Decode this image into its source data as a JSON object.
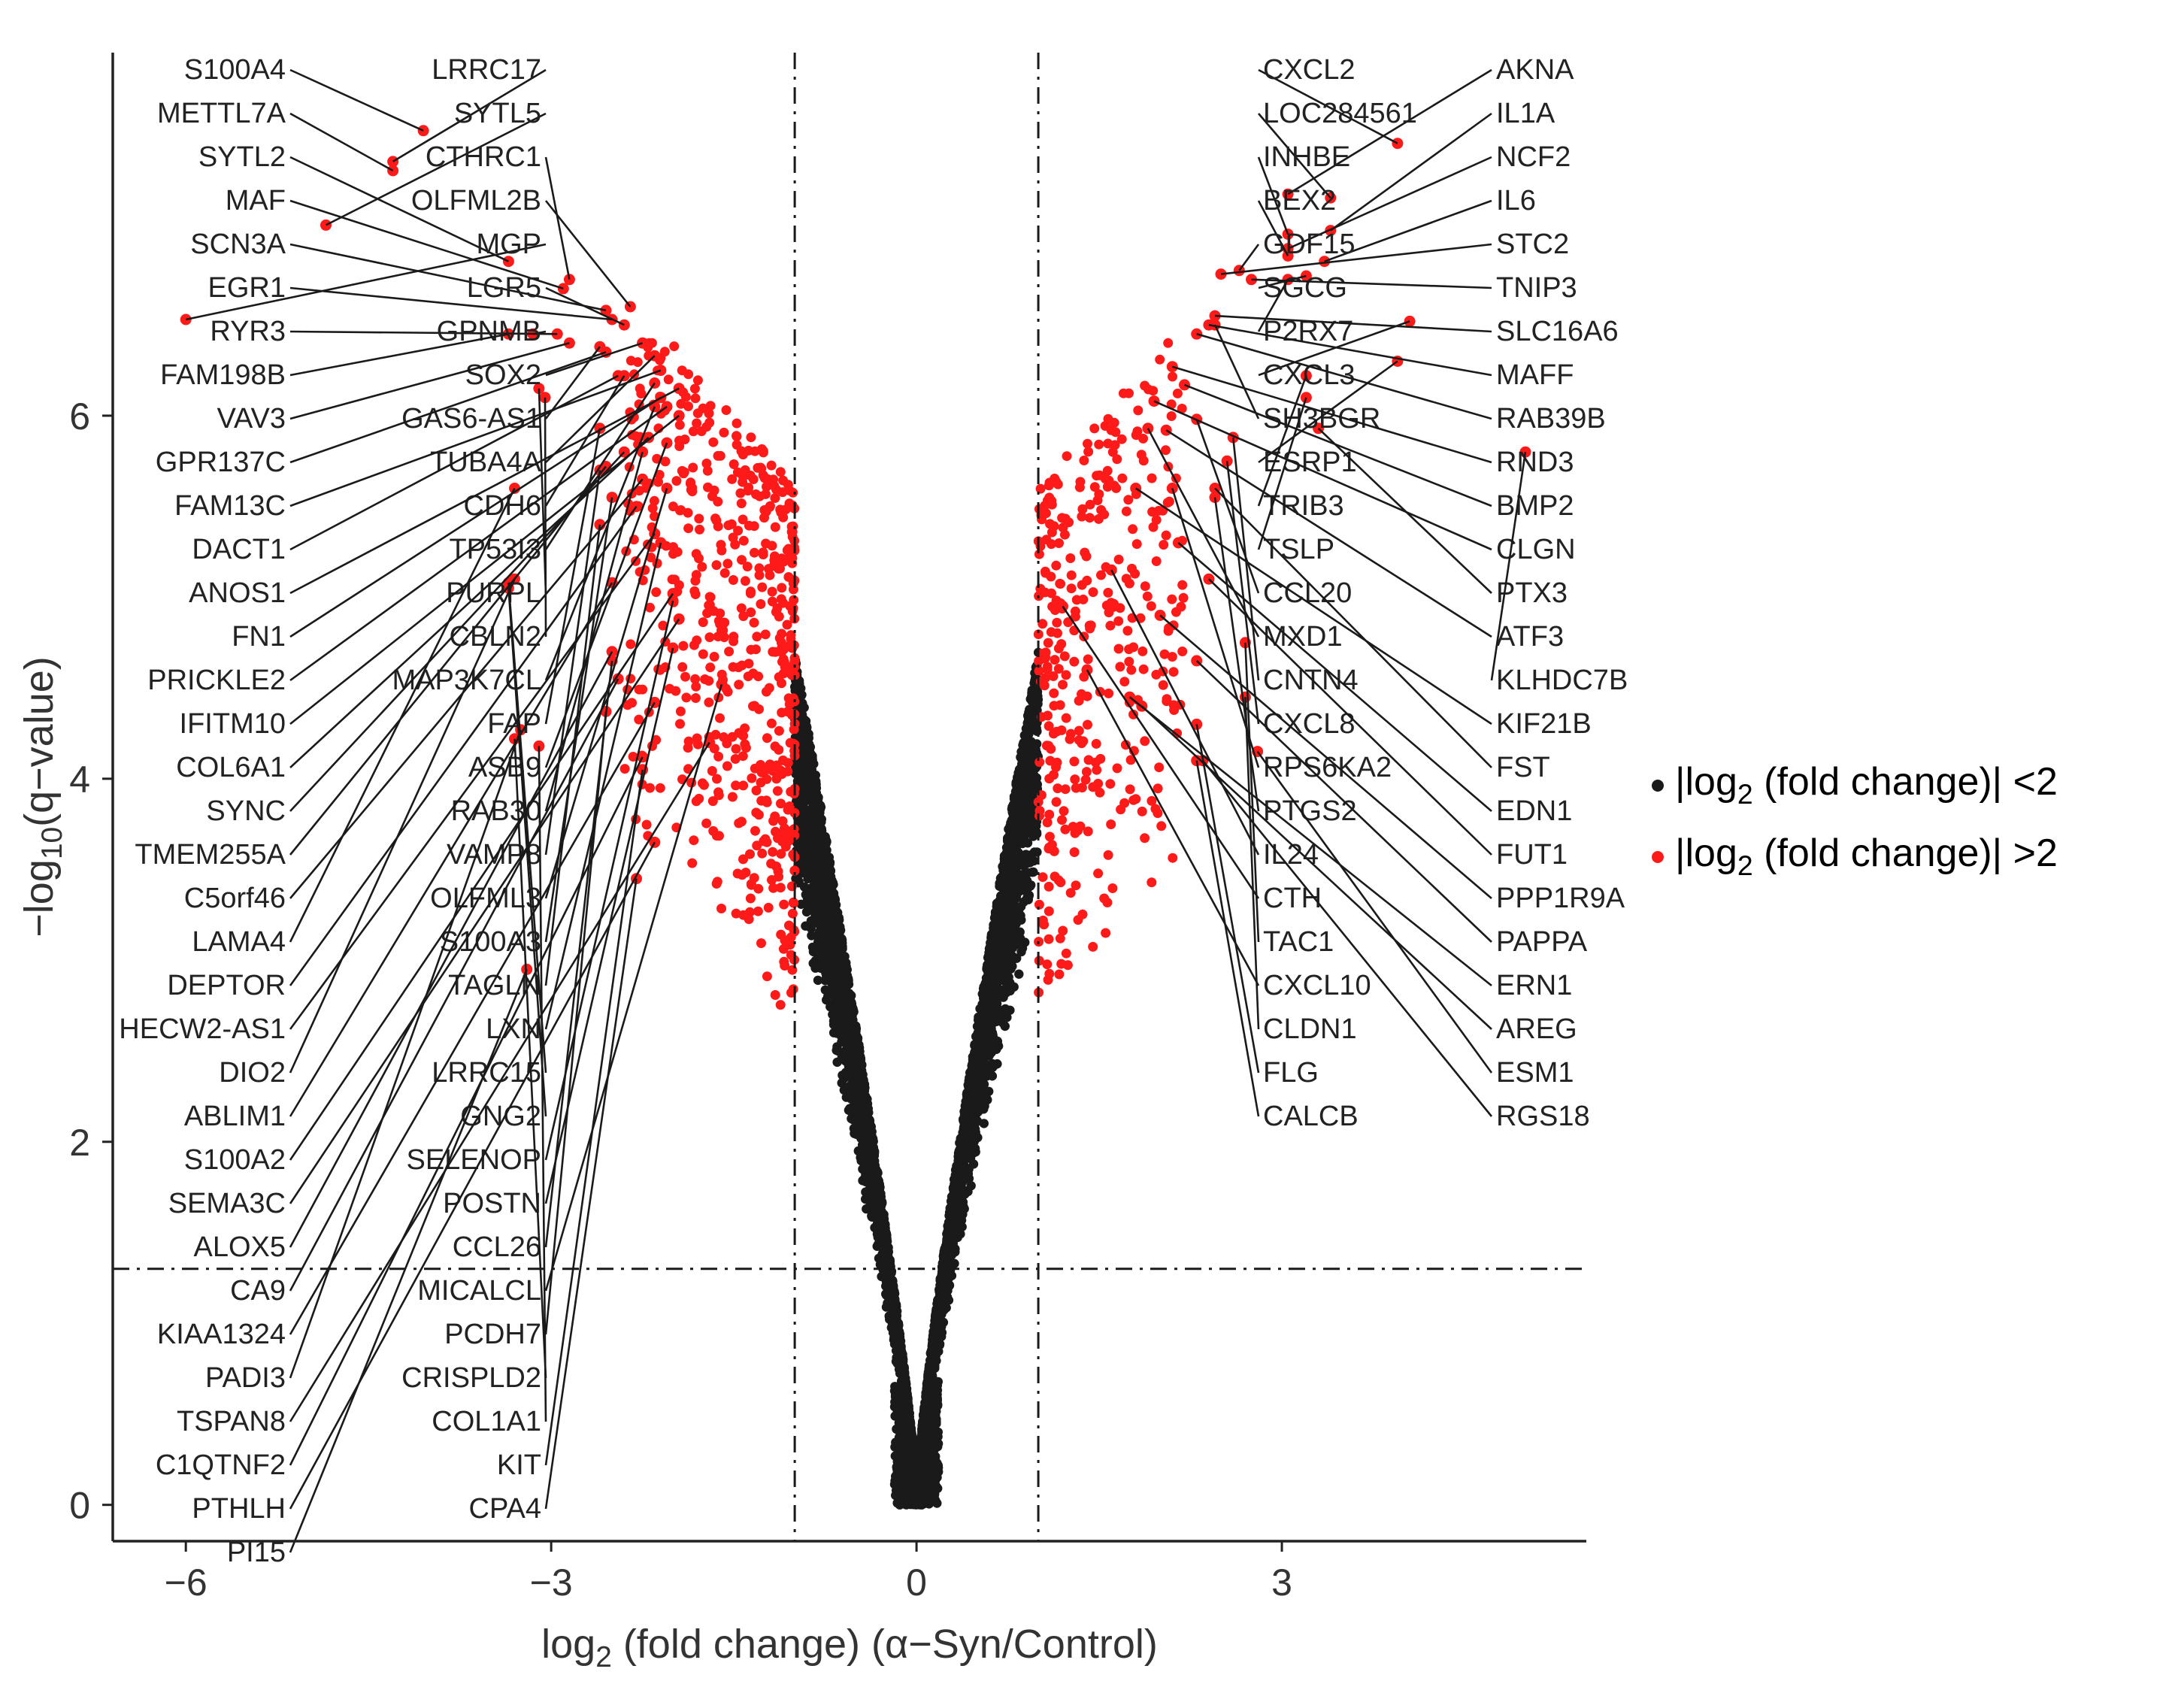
{
  "chart_data": {
    "type": "scatter",
    "title": "",
    "xlabel": {
      "prefix": "log",
      "sub": "2",
      "suffix": " (fold change) (α−Syn/Control)"
    },
    "ylabel": {
      "prefix": "−log",
      "sub": "10",
      "suffix": "(q−value)"
    },
    "xlim": [
      -6.6,
      5.5
    ],
    "ylim": [
      -0.2,
      8.0
    ],
    "x_ticks": [
      {
        "v": -6,
        "label": "−6"
      },
      {
        "v": -3,
        "label": "−3"
      },
      {
        "v": 0,
        "label": "0"
      },
      {
        "v": 3,
        "label": "3"
      }
    ],
    "y_ticks": [
      {
        "v": 0,
        "label": "0"
      },
      {
        "v": 2,
        "label": "2"
      },
      {
        "v": 4,
        "label": "4"
      },
      {
        "v": 6,
        "label": "6"
      }
    ],
    "thresholds": {
      "x": [
        -1,
        1
      ],
      "y": 1.3
    },
    "grid": false,
    "legend": {
      "position": "right",
      "entries": [
        {
          "series": "not_significant",
          "prefix": "|log",
          "sub": "2",
          "suffix": " (fold change)| <2",
          "color": "#1a1a1a"
        },
        {
          "series": "significant",
          "prefix": "|log",
          "sub": "2",
          "suffix": " (fold change)| >2",
          "color": "#ff1a1a"
        }
      ]
    },
    "colors": {
      "not_significant": "#1a1a1a",
      "significant": "#ff1a1a"
    },
    "labeled_points": [
      {
        "gene": "S100A4",
        "x": -4.05,
        "y": 7.57
      },
      {
        "gene": "LRRC17",
        "x": -4.3,
        "y": 7.4
      },
      {
        "gene": "METTL7A",
        "x": -4.3,
        "y": 7.35
      },
      {
        "gene": "SYTL5",
        "x": -4.85,
        "y": 7.05
      },
      {
        "gene": "SYTL2",
        "x": -3.35,
        "y": 6.85
      },
      {
        "gene": "MGP",
        "x": -6.0,
        "y": 6.53
      },
      {
        "gene": "CTHRC1",
        "x": -2.85,
        "y": 6.75
      },
      {
        "gene": "MAF",
        "x": -2.9,
        "y": 6.7
      },
      {
        "gene": "SCN3A",
        "x": -2.55,
        "y": 6.58
      },
      {
        "gene": "OLFML2B",
        "x": -2.35,
        "y": 6.6
      },
      {
        "gene": "EGR1",
        "x": -2.5,
        "y": 6.53
      },
      {
        "gene": "LGR5",
        "x": -2.4,
        "y": 6.5
      },
      {
        "gene": "SOX2",
        "x": -2.25,
        "y": 6.4
      },
      {
        "gene": "TUBA4A",
        "x": -2.15,
        "y": 6.33
      },
      {
        "gene": "RYR3",
        "x": -2.95,
        "y": 6.45
      },
      {
        "gene": "VAV3",
        "x": -2.85,
        "y": 6.4
      },
      {
        "gene": "GAS6-AS1",
        "x": -2.6,
        "y": 6.38
      },
      {
        "gene": "FAM13C",
        "x": -2.1,
        "y": 6.25
      },
      {
        "gene": "GPNMB",
        "x": -3.15,
        "y": 6.45
      },
      {
        "gene": "FAM198B",
        "x": -3.35,
        "y": 6.45
      },
      {
        "gene": "TP53I3",
        "x": -2.15,
        "y": 6.18
      },
      {
        "gene": "ANOS1",
        "x": -1.95,
        "y": 6.15
      },
      {
        "gene": "GPR137C",
        "x": -2.55,
        "y": 6.35
      },
      {
        "gene": "FN1",
        "x": -2.1,
        "y": 6.1
      },
      {
        "gene": "PRICKLE2",
        "x": -2.05,
        "y": 6.05
      },
      {
        "gene": "CDH6",
        "x": -2.4,
        "y": 6.22
      },
      {
        "gene": "DACT1",
        "x": -2.45,
        "y": 6.22
      },
      {
        "gene": "MAP3K7CL",
        "x": -2.15,
        "y": 6.05
      },
      {
        "gene": "IFITM10",
        "x": -1.95,
        "y": 6.0
      },
      {
        "gene": "PURPL",
        "x": -3.1,
        "y": 6.15
      },
      {
        "gene": "CBLN2",
        "x": -3.05,
        "y": 6.1
      },
      {
        "gene": "FAP",
        "x": -2.6,
        "y": 5.93
      },
      {
        "gene": "COL6A1",
        "x": -2.2,
        "y": 5.88
      },
      {
        "gene": "ASB9",
        "x": -2.05,
        "y": 5.85
      },
      {
        "gene": "SYNC",
        "x": -2.4,
        "y": 5.8
      },
      {
        "gene": "RAB30",
        "x": -2.25,
        "y": 5.8
      },
      {
        "gene": "VAMP8",
        "x": -2.6,
        "y": 5.7
      },
      {
        "gene": "TMEM255A",
        "x": -2.55,
        "y": 5.72
      },
      {
        "gene": "C5orf46",
        "x": -2.25,
        "y": 5.65
      },
      {
        "gene": "OLFML3",
        "x": -2.05,
        "y": 5.6
      },
      {
        "gene": "LAMA4",
        "x": -3.3,
        "y": 5.6
      },
      {
        "gene": "S100A3",
        "x": -2.5,
        "y": 5.55
      },
      {
        "gene": "DEPTOR",
        "x": -2.3,
        "y": 5.5
      },
      {
        "gene": "HECW2-AS1",
        "x": -2.15,
        "y": 5.35
      },
      {
        "gene": "LXN",
        "x": -2.1,
        "y": 5.3
      },
      {
        "gene": "TAGLN",
        "x": -2.6,
        "y": 5.4
      },
      {
        "gene": "LRRC15",
        "x": -3.35,
        "y": 5.08
      },
      {
        "gene": "DIO2",
        "x": -3.3,
        "y": 5.1
      },
      {
        "gene": "ABLIM1",
        "x": -2.5,
        "y": 5.08
      },
      {
        "gene": "SELENOP",
        "x": -2.0,
        "y": 4.98
      },
      {
        "gene": "S100A2",
        "x": -2.0,
        "y": 5.02
      },
      {
        "gene": "GNG2",
        "x": -3.35,
        "y": 5.05
      },
      {
        "gene": "SEMA3C",
        "x": -1.95,
        "y": 4.88
      },
      {
        "gene": "POSTN",
        "x": -2.0,
        "y": 4.72
      },
      {
        "gene": "ALOX5",
        "x": -2.5,
        "y": 4.7
      },
      {
        "gene": "CCL26",
        "x": -2.5,
        "y": 4.65
      },
      {
        "gene": "MICALCL",
        "x": -1.6,
        "y": 4.52
      },
      {
        "gene": "CA9",
        "x": -2.45,
        "y": 4.55
      },
      {
        "gene": "KIAA1324",
        "x": -2.15,
        "y": 4.42
      },
      {
        "gene": "PCDH7",
        "x": -2.55,
        "y": 4.37
      },
      {
        "gene": "PADI3",
        "x": -3.25,
        "y": 4.27
      },
      {
        "gene": "TSPAN8",
        "x": -1.7,
        "y": 4.2
      },
      {
        "gene": "CRISPLD2",
        "x": -3.3,
        "y": 4.22
      },
      {
        "gene": "C1QTNF2",
        "x": -2.25,
        "y": 4.12
      },
      {
        "gene": "COL1A1",
        "x": -3.1,
        "y": 4.18
      },
      {
        "gene": "KIT",
        "x": -2.25,
        "y": 4.05
      },
      {
        "gene": "PTHLH",
        "x": -2.15,
        "y": 3.65
      },
      {
        "gene": "CPA4",
        "x": -2.3,
        "y": 3.45
      },
      {
        "gene": "PI15",
        "x": -3.2,
        "y": 2.95
      },
      {
        "gene": "BEX2",
        "x": 3.05,
        "y": 6.88
      },
      {
        "gene": "NCF2",
        "x": 3.05,
        "y": 6.92
      },
      {
        "gene": "INHBE",
        "x": 3.05,
        "y": 7.0
      },
      {
        "gene": "CXCL2",
        "x": 3.95,
        "y": 7.5
      },
      {
        "gene": "AKNA",
        "x": 3.05,
        "y": 7.22
      },
      {
        "gene": "LOC284561",
        "x": 3.4,
        "y": 7.2
      },
      {
        "gene": "GDF15",
        "x": 2.65,
        "y": 6.8
      },
      {
        "gene": "IL1A",
        "x": 3.4,
        "y": 7.02
      },
      {
        "gene": "IL6",
        "x": 3.35,
        "y": 6.85
      },
      {
        "gene": "STC2",
        "x": 2.5,
        "y": 6.78
      },
      {
        "gene": "TNIP3",
        "x": 2.75,
        "y": 6.75
      },
      {
        "gene": "SGCG",
        "x": 3.2,
        "y": 6.77
      },
      {
        "gene": "P2RX7",
        "x": 3.05,
        "y": 6.75
      },
      {
        "gene": "MAFF",
        "x": 2.4,
        "y": 6.5
      },
      {
        "gene": "SH3BGR",
        "x": 2.45,
        "y": 6.5
      },
      {
        "gene": "CXCL3",
        "x": 4.05,
        "y": 6.52
      },
      {
        "gene": "RAB39B",
        "x": 2.3,
        "y": 6.45
      },
      {
        "gene": "SLC16A6",
        "x": 2.45,
        "y": 6.55
      },
      {
        "gene": "TRIB3",
        "x": 3.2,
        "y": 6.22
      },
      {
        "gene": "ESRP1",
        "x": 3.95,
        "y": 6.3
      },
      {
        "gene": "RND3",
        "x": 2.1,
        "y": 6.27
      },
      {
        "gene": "BMP2",
        "x": 2.2,
        "y": 6.17
      },
      {
        "gene": "TSLP",
        "x": 3.2,
        "y": 6.1
      },
      {
        "gene": "CLGN",
        "x": 1.95,
        "y": 6.08
      },
      {
        "gene": "CCL20",
        "x": 2.3,
        "y": 5.98
      },
      {
        "gene": "PTX3",
        "x": 3.3,
        "y": 5.93
      },
      {
        "gene": "MXD1",
        "x": 1.9,
        "y": 5.93
      },
      {
        "gene": "ATF3",
        "x": 2.05,
        "y": 5.92
      },
      {
        "gene": "CNTN4",
        "x": 2.6,
        "y": 5.88
      },
      {
        "gene": "KLHDC7B",
        "x": 5.0,
        "y": 5.8
      },
      {
        "gene": "KIF21B",
        "x": 1.8,
        "y": 5.6
      },
      {
        "gene": "CXCL8",
        "x": 2.55,
        "y": 5.75
      },
      {
        "gene": "RPS6KA2",
        "x": 2.1,
        "y": 5.6
      },
      {
        "gene": "FST",
        "x": 2.45,
        "y": 5.6
      },
      {
        "gene": "IL24",
        "x": 1.6,
        "y": 5.15
      },
      {
        "gene": "PTGS2",
        "x": 2.45,
        "y": 5.55
      },
      {
        "gene": "EDN1",
        "x": 2.15,
        "y": 5.3
      },
      {
        "gene": "CTH",
        "x": 1.2,
        "y": 4.95
      },
      {
        "gene": "FUT1",
        "x": 2.4,
        "y": 5.1
      },
      {
        "gene": "TAC1",
        "x": 2.7,
        "y": 4.75
      },
      {
        "gene": "PPP1R9A",
        "x": 2.0,
        "y": 4.9
      },
      {
        "gene": "PAPPA",
        "x": 2.3,
        "y": 4.65
      },
      {
        "gene": "CXCL10",
        "x": 1.4,
        "y": 4.6
      },
      {
        "gene": "ERN1",
        "x": 1.75,
        "y": 4.45
      },
      {
        "gene": "CLDN1",
        "x": 2.7,
        "y": 4.45
      },
      {
        "gene": "AREG",
        "x": 1.85,
        "y": 4.4
      },
      {
        "gene": "FLG",
        "x": 2.3,
        "y": 4.3
      },
      {
        "gene": "ESM1",
        "x": 2.8,
        "y": 4.15
      },
      {
        "gene": "CALCB",
        "x": 2.3,
        "y": 4.1
      },
      {
        "gene": "RGS18",
        "x": 2.35,
        "y": 4.1
      }
    ]
  }
}
